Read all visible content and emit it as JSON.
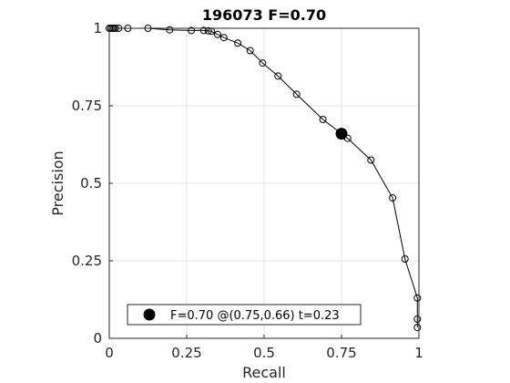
{
  "chart_data": {
    "type": "line",
    "title": "196073 F=0.70",
    "xlabel": "Recall",
    "ylabel": "Precision",
    "xlim": [
      0,
      1
    ],
    "ylim": [
      0,
      1
    ],
    "xticks": [
      "0",
      "0.25",
      "0.5",
      "0.75",
      "1"
    ],
    "yticks": [
      "0",
      "0.25",
      "0.5",
      "0.75",
      "1"
    ],
    "grid": true,
    "legend_position": "bottom-center",
    "series": [
      {
        "marker": "open-circle",
        "color": "#000000",
        "points": [
          [
            0.0,
            1.0
          ],
          [
            0.005,
            1.0
          ],
          [
            0.01,
            1.0
          ],
          [
            0.015,
            1.0
          ],
          [
            0.02,
            1.0
          ],
          [
            0.03,
            1.0
          ],
          [
            0.06,
            1.0
          ],
          [
            0.125,
            1.0
          ],
          [
            0.195,
            0.995
          ],
          [
            0.265,
            0.993
          ],
          [
            0.305,
            0.993
          ],
          [
            0.32,
            0.992
          ],
          [
            0.33,
            0.99
          ],
          [
            0.35,
            0.98
          ],
          [
            0.37,
            0.97
          ],
          [
            0.415,
            0.952
          ],
          [
            0.455,
            0.928
          ],
          [
            0.495,
            0.888
          ],
          [
            0.545,
            0.846
          ],
          [
            0.605,
            0.787
          ],
          [
            0.69,
            0.706
          ],
          [
            0.77,
            0.645
          ],
          [
            0.845,
            0.575
          ],
          [
            0.915,
            0.453
          ],
          [
            0.955,
            0.256
          ],
          [
            0.995,
            0.13
          ],
          [
            0.995,
            0.062
          ],
          [
            0.995,
            0.035
          ]
        ]
      }
    ],
    "best_point": {
      "recall": 0.75,
      "precision": 0.66,
      "label": "F=0.70 @(0.75,0.66) t=0.23"
    }
  }
}
